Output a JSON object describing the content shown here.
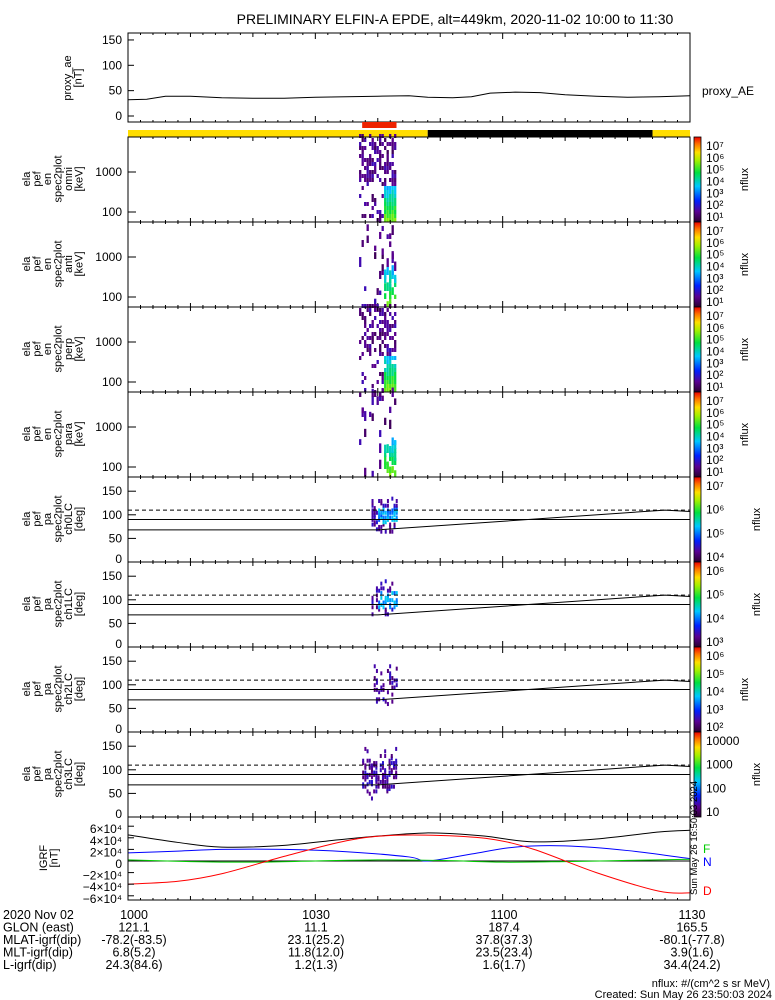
{
  "chart_data": {
    "type": "heatmap",
    "title": "PRELIMINARY ELFIN-A EPDE, alt=449km, 2020-11-02 10:00 to 11:30",
    "x_range_minutes_after_1000": [
      0,
      90
    ],
    "time_ticks": [
      "1000",
      "1030",
      "1100",
      "1130"
    ],
    "proxy_ae": {
      "ylabel": [
        "proxy_ae",
        "[nT]"
      ],
      "legend": "proxy_AE",
      "ylim": [
        0,
        160
      ],
      "yticks": [
        "0",
        "50",
        "100",
        "150"
      ],
      "t": [
        0,
        3,
        6,
        10,
        15,
        20,
        25,
        30,
        35,
        40,
        45,
        48,
        52,
        55,
        58,
        62,
        66,
        70,
        75,
        80,
        85,
        90
      ],
      "values": [
        32,
        33,
        39,
        39,
        36,
        35,
        35,
        37,
        38,
        39,
        40,
        37,
        36,
        38,
        45,
        47,
        46,
        42,
        39,
        37,
        38,
        40
      ]
    },
    "orbit_bar": {
      "segments": [
        {
          "t0": 0,
          "t1": 48,
          "color": "#ffdd00"
        },
        {
          "t0": 48,
          "t1": 84,
          "color": "#000000"
        },
        {
          "t0": 84,
          "t1": 90,
          "color": "#ffdd00"
        }
      ],
      "science_zone": {
        "t0": 37.5,
        "t1": 43,
        "color": "#ee2200"
      }
    },
    "energy_panels": [
      {
        "ylabel": [
          "ela",
          "pef",
          "en",
          "spec2plot",
          "omni",
          "[keV]"
        ],
        "yticks": [
          "100",
          "1000"
        ],
        "cbar_label": "nflux",
        "cbar_ticks": [
          "10⁷",
          "10⁶",
          "10⁵",
          "10⁴",
          "10³",
          "10²",
          "10¹"
        ],
        "density": 0.75
      },
      {
        "ylabel": [
          "ela",
          "pef",
          "en",
          "spec2plot",
          "anti",
          "[keV]"
        ],
        "yticks": [
          "100",
          "1000"
        ],
        "cbar_label": "nflux",
        "cbar_ticks": [
          "10⁷",
          "10⁶",
          "10⁵",
          "10⁴",
          "10³",
          "10²",
          "10¹"
        ],
        "density": 0.15
      },
      {
        "ylabel": [
          "ela",
          "pef",
          "en",
          "spec2plot",
          "perp",
          "[keV]"
        ],
        "yticks": [
          "100",
          "1000"
        ],
        "cbar_label": "nflux",
        "cbar_ticks": [
          "10⁷",
          "10⁶",
          "10⁵",
          "10⁴",
          "10³",
          "10²",
          "10¹"
        ],
        "density": 0.6
      },
      {
        "ylabel": [
          "ela",
          "pef",
          "en",
          "spec2plot",
          "para",
          "[keV]"
        ],
        "yticks": [
          "100",
          "1000"
        ],
        "cbar_label": "nflux",
        "cbar_ticks": [
          "10⁷",
          "10⁶",
          "10⁵",
          "10⁴",
          "10³",
          "10²",
          "10¹"
        ],
        "density": 0.15
      }
    ],
    "pa_panels": [
      {
        "ylabel": [
          "ela",
          "pef",
          "pa",
          "spec2plot",
          "ch0LC",
          "[deg]"
        ],
        "yticks": [
          "0",
          "50",
          "100",
          "150"
        ],
        "cbar_label": "nflux",
        "cbar_ticks": [
          "10⁷",
          "10⁶",
          "10⁵",
          "10⁴"
        ],
        "density": 0.8
      },
      {
        "ylabel": [
          "ela",
          "pef",
          "pa",
          "spec2plot",
          "ch1LC",
          "[deg]"
        ],
        "yticks": [
          "0",
          "50",
          "100",
          "150"
        ],
        "cbar_label": "nflux",
        "cbar_ticks": [
          "10⁶",
          "10⁵",
          "10⁴",
          "10³"
        ],
        "density": 0.6
      },
      {
        "ylabel": [
          "ela",
          "pef",
          "pa",
          "spec2plot",
          "ch2LC",
          "[deg]"
        ],
        "yticks": [
          "0",
          "50",
          "100",
          "150"
        ],
        "cbar_label": "nflux",
        "cbar_ticks": [
          "10⁶",
          "10⁵",
          "10⁴",
          "10³",
          "10²"
        ],
        "density": 0.3
      },
      {
        "ylabel": [
          "ela",
          "pef",
          "pa",
          "spec2plot",
          "ch3LC",
          "[deg]"
        ],
        "yticks": [
          "0",
          "50",
          "100",
          "150"
        ],
        "cbar_label": "nflux",
        "cbar_ticks": [
          "10000",
          "1000",
          "100",
          "10"
        ],
        "density": 0.55
      }
    ],
    "loss_cone_lines": {
      "dashed_deg": 110,
      "horizontal_deg": 90,
      "t": [
        0,
        40,
        86,
        90
      ],
      "values": [
        68,
        68,
        110,
        107
      ]
    },
    "igrf": {
      "ylabel": [
        "IGRF",
        "[nT]"
      ],
      "ylim": [
        -65000,
        65000
      ],
      "yticks": [
        "6×10⁴",
        "4×10⁴",
        "2×10⁴",
        "0",
        "−2×10⁴",
        "−4×10⁴",
        "−6×10⁴"
      ],
      "legend": [
        "F",
        "N",
        "D"
      ],
      "series": [
        {
          "name": "F",
          "color": "#000000",
          "t": [
            0,
            8,
            15,
            25,
            35,
            45,
            50,
            57,
            65,
            75,
            85,
            90
          ],
          "values": [
            45000,
            32000,
            24000,
            27000,
            38000,
            47000,
            48000,
            43000,
            33000,
            38000,
            50000,
            53000
          ]
        },
        {
          "name": "N",
          "color": "#0000ff",
          "t": [
            0,
            8,
            15,
            25,
            35,
            45,
            48,
            55,
            62,
            70,
            80,
            90
          ],
          "values": [
            14000,
            17000,
            20000,
            20000,
            16000,
            7000,
            0,
            12000,
            24000,
            26000,
            18000,
            4000
          ]
        },
        {
          "name": "E",
          "color": "#00cc00",
          "t": [
            0,
            10,
            20,
            30,
            40,
            50,
            60,
            70,
            80,
            90
          ],
          "values": [
            2000,
            -1000,
            -2000,
            0,
            2000,
            1000,
            -2000,
            -1000,
            1000,
            3000
          ]
        },
        {
          "name": "D",
          "color": "#ff0000",
          "t": [
            0,
            8,
            15,
            25,
            35,
            42,
            50,
            58,
            65,
            75,
            85,
            90
          ],
          "values": [
            -40000,
            -35000,
            -22000,
            8000,
            35000,
            44000,
            44000,
            38000,
            20000,
            -20000,
            -52000,
            -55000
          ]
        }
      ],
      "side_stamp": "Sun May 26 16:50:03 2024"
    },
    "footer": {
      "rows": [
        {
          "label": "2020 Nov 02",
          "values": [
            "1000",
            "1030",
            "1100",
            "1130"
          ]
        },
        {
          "label": "GLON (east)",
          "values": [
            "121.1",
            "11.1",
            "187.4",
            "165.5"
          ]
        },
        {
          "label": "MLAT-igrf(dip)",
          "values": [
            "-78.2(-83.5)",
            "23.1(25.2)",
            "37.8(37.3)",
            "-80.1(-77.8)"
          ]
        },
        {
          "label": "MLT-igrf(dip)",
          "values": [
            "6.8(5.2)",
            "11.8(12.0)",
            "23.5(23.4)",
            "3.9(1.6)"
          ]
        },
        {
          "label": "L-igrf(dip)",
          "values": [
            "24.3(84.6)",
            "1.2(1.3)",
            "1.6(1.7)",
            "34.4(24.2)"
          ]
        }
      ],
      "units_note": "nflux: #/(cm^2 s sr MeV)",
      "created": "Created: Sun May 26 23:50:03 2024"
    }
  }
}
